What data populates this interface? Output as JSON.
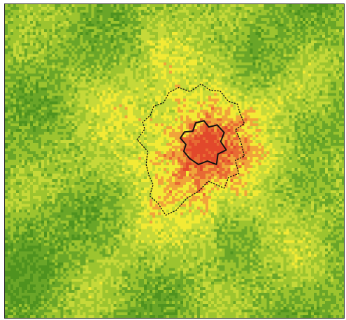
{
  "map": {
    "type": "raster-heatmap",
    "colors": {
      "dark_green": "#4f931f",
      "green": "#6aa628",
      "yellow_green": "#9cc42f",
      "light_yellow_green": "#c5d939",
      "yellow": "#f2ea34",
      "orange": "#f0a43a",
      "red_orange": "#e86a33",
      "red": "#e2482b",
      "boundary_line": "#111111"
    },
    "layers": [
      {
        "name": "land-surface-heat-raster",
        "visible": true
      },
      {
        "name": "outer-urban-boundary",
        "style": "dotted",
        "visible": true
      },
      {
        "name": "inner-core-boundary",
        "style": "solid",
        "visible": true
      }
    ]
  }
}
